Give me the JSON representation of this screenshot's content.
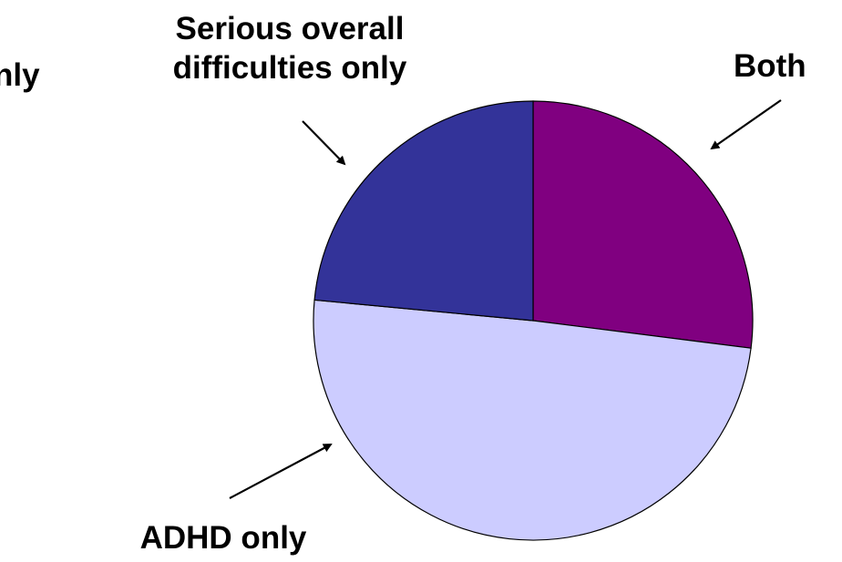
{
  "chart_data": {
    "type": "pie",
    "title": "",
    "start": "12 o'clock, clockwise",
    "slices": [
      {
        "label_lines": [
          "Both"
        ],
        "value": 27,
        "color": "#800080"
      },
      {
        "label_lines": [
          "ADHD only"
        ],
        "value": 49.5,
        "color": "#CCCCFF"
      },
      {
        "label_lines": [
          "Serious overall",
          "difficulties only"
        ],
        "value": 23.5,
        "color": "#333399"
      }
    ],
    "partial_label": "nly",
    "legend": "none",
    "annotation_style": "arrows"
  }
}
